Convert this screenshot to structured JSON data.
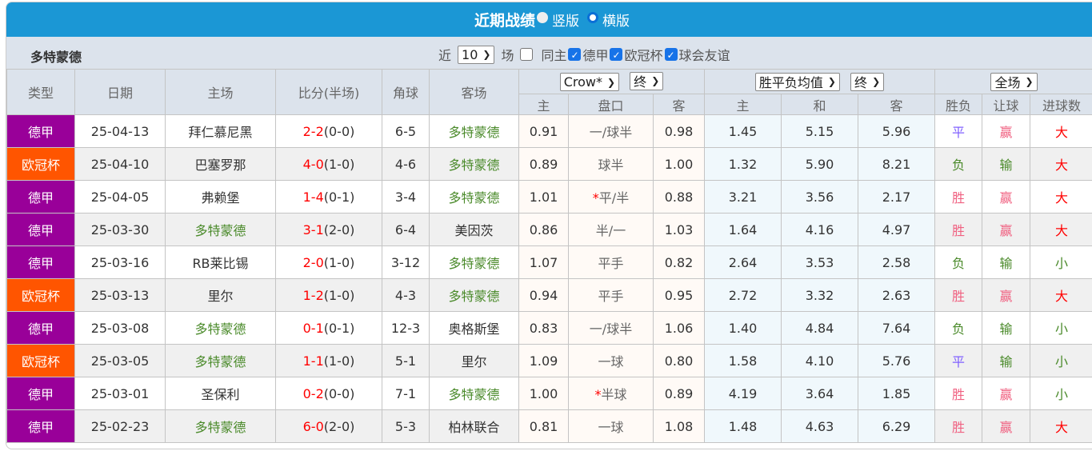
{
  "title": "近期战绩",
  "view_options": [
    {
      "label": "竖版",
      "selected": false
    },
    {
      "label": "横版",
      "selected": true
    }
  ],
  "team": "多特蒙德",
  "filter": {
    "prefix": "近",
    "count": "10",
    "suffix": "场",
    "checks": [
      {
        "label": "同主",
        "checked": false
      },
      {
        "label": "德甲",
        "checked": true
      },
      {
        "label": "欧冠杯",
        "checked": true
      },
      {
        "label": "球会友谊",
        "checked": true
      }
    ]
  },
  "header": {
    "type": "类型",
    "date": "日期",
    "home": "主场",
    "score": "比分(半场)",
    "corner": "角球",
    "away": "客场",
    "company": "Crow*",
    "company_stage": "终",
    "avg": "胜平负均值",
    "avg_stage": "终",
    "period": "全场",
    "sub": [
      "主",
      "盘口",
      "客",
      "主",
      "和",
      "客",
      "胜负",
      "让球",
      "进球数"
    ]
  },
  "colors": {
    "league_bundesliga": "#990099",
    "league_ucl": "#ff5500",
    "title_bar": "#1b97d5"
  },
  "rows": [
    [
      "德甲",
      "25-04-13",
      "拜仁慕尼黑",
      "2-2",
      "(0-0)",
      "6-5",
      "多特蒙德",
      "0.91",
      "",
      "一/球半",
      "0.98",
      "1.45",
      "5.15",
      "5.96",
      "平",
      "赢",
      "大"
    ],
    [
      "欧冠杯",
      "25-04-10",
      "巴塞罗那",
      "4-0",
      "(1-0)",
      "4-6",
      "多特蒙德",
      "0.89",
      "",
      "球半",
      "1.00",
      "1.32",
      "5.90",
      "8.21",
      "负",
      "输",
      "大"
    ],
    [
      "德甲",
      "25-04-05",
      "弗赖堡",
      "1-4",
      "(0-1)",
      "3-4",
      "多特蒙德",
      "1.01",
      "*",
      "平/半",
      "0.88",
      "3.21",
      "3.56",
      "2.17",
      "胜",
      "赢",
      "大"
    ],
    [
      "德甲",
      "25-03-30",
      "多特蒙德",
      "3-1",
      "(2-0)",
      "6-4",
      "美因茨",
      "0.86",
      "",
      "半/一",
      "1.03",
      "1.64",
      "4.16",
      "4.97",
      "胜",
      "赢",
      "大"
    ],
    [
      "德甲",
      "25-03-16",
      "RB莱比锡",
      "2-0",
      "(1-0)",
      "3-12",
      "多特蒙德",
      "1.07",
      "",
      "平手",
      "0.82",
      "2.64",
      "3.53",
      "2.58",
      "负",
      "输",
      "小"
    ],
    [
      "欧冠杯",
      "25-03-13",
      "里尔",
      "1-2",
      "(1-0)",
      "4-3",
      "多特蒙德",
      "0.94",
      "",
      "平手",
      "0.95",
      "2.72",
      "3.32",
      "2.63",
      "胜",
      "赢",
      "大"
    ],
    [
      "德甲",
      "25-03-08",
      "多特蒙德",
      "0-1",
      "(0-1)",
      "12-3",
      "奥格斯堡",
      "0.83",
      "",
      "一/球半",
      "1.06",
      "1.40",
      "4.84",
      "7.64",
      "负",
      "输",
      "小"
    ],
    [
      "欧冠杯",
      "25-03-05",
      "多特蒙德",
      "1-1",
      "(1-0)",
      "5-1",
      "里尔",
      "1.09",
      "",
      "一球",
      "0.80",
      "1.58",
      "4.10",
      "5.76",
      "平",
      "输",
      "小"
    ],
    [
      "德甲",
      "25-03-01",
      "圣保利",
      "0-2",
      "(0-0)",
      "7-1",
      "多特蒙德",
      "1.00",
      "*",
      "半球",
      "0.89",
      "4.19",
      "3.64",
      "1.85",
      "胜",
      "赢",
      "小"
    ],
    [
      "德甲",
      "25-02-23",
      "多特蒙德",
      "6-0",
      "(2-0)",
      "5-3",
      "柏林联合",
      "0.81",
      "",
      "一球",
      "1.08",
      "1.48",
      "4.63",
      "6.29",
      "胜",
      "赢",
      "大"
    ]
  ]
}
